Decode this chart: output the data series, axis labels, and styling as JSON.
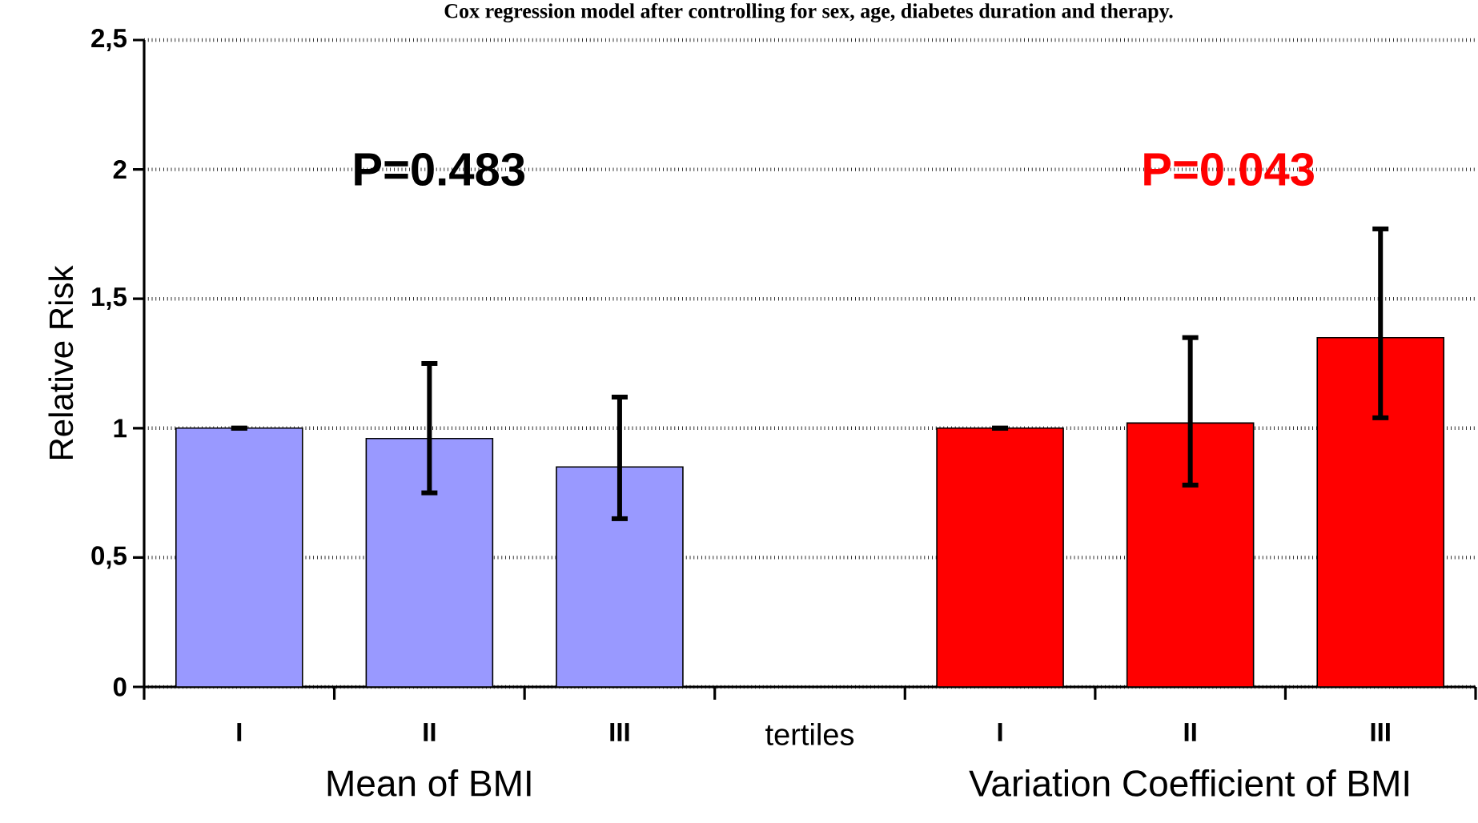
{
  "chart_data": {
    "type": "bar",
    "title": "Cox regression model after controlling for sex, age, diabetes duration and therapy.",
    "ylabel": "Relative Risk",
    "categories": [
      "I",
      "II",
      "III",
      "tertiles",
      "I",
      "II",
      "III"
    ],
    "values": [
      1.0,
      0.96,
      0.85,
      null,
      1.0,
      1.02,
      1.35
    ],
    "colors": [
      "#9999ff",
      "#9999ff",
      "#9999ff",
      null,
      "#ff0000",
      "#ff0000",
      "#ff0000"
    ],
    "errors": [
      [
        1.0,
        1.0
      ],
      [
        0.75,
        1.25
      ],
      [
        0.65,
        1.12
      ],
      null,
      [
        1.0,
        1.0
      ],
      [
        0.78,
        1.35
      ],
      [
        1.04,
        1.77
      ]
    ],
    "ylim": [
      0,
      2.5
    ],
    "yticks": [
      0,
      {
        "value": 0.5,
        "label": "0,5"
      },
      1,
      {
        "value": 1.5,
        "label": "1,5"
      },
      2,
      {
        "value": 2.5,
        "label": "2,5"
      }
    ],
    "grid": "y",
    "legend": false,
    "annotations": [
      "P=0.483",
      "P=0.043",
      "Mean of BMI",
      "Variation Coefficient of BMI"
    ]
  }
}
